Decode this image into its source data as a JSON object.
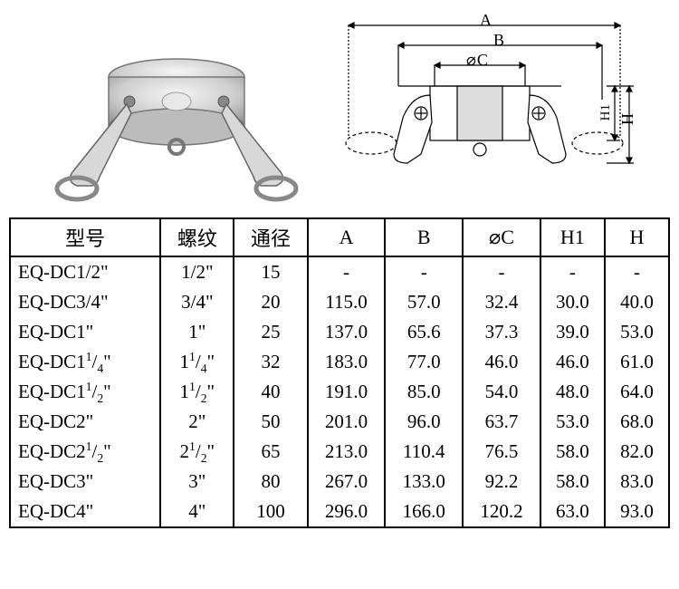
{
  "diagram": {
    "labels": {
      "A": "A",
      "B": "B",
      "C": "C",
      "H1": "H1",
      "H": "H"
    },
    "line_color": "#000000",
    "line_width": 1.2,
    "dashed_pattern": "4,3"
  },
  "table": {
    "border_color": "#000000",
    "border_width": 2,
    "header_fontsize": 22,
    "cell_fontsize": 21,
    "columns": [
      "型号",
      "螺纹",
      "通径",
      "A",
      "B",
      "⌀C",
      "H1",
      "H"
    ],
    "column_align": [
      "left",
      "center",
      "center",
      "center",
      "center",
      "center",
      "center",
      "center"
    ],
    "rows": [
      {
        "model": "EQ-DC1/2\"",
        "thread": "1/2\"",
        "bore": "15",
        "A": "-",
        "B": "-",
        "C": "-",
        "H1": "-",
        "H": "-"
      },
      {
        "model": "EQ-DC3/4\"",
        "thread": "3/4\"",
        "bore": "20",
        "A": "115.0",
        "B": "57.0",
        "C": "32.4",
        "H1": "30.0",
        "H": "40.0"
      },
      {
        "model": "EQ-DC1\"",
        "thread": "1\"",
        "bore": "25",
        "A": "137.0",
        "B": "65.6",
        "C": "37.3",
        "H1": "39.0",
        "H": "53.0"
      },
      {
        "model": "EQ-DC1¼\"",
        "thread": "1¼\"",
        "bore": "32",
        "A": "183.0",
        "B": "77.0",
        "C": "46.0",
        "H1": "46.0",
        "H": "61.0",
        "model_frac": [
          "1",
          "4"
        ],
        "thread_frac": [
          "1",
          "4"
        ]
      },
      {
        "model": "EQ-DC1½\"",
        "thread": "1½\"",
        "bore": "40",
        "A": "191.0",
        "B": "85.0",
        "C": "54.0",
        "H1": "48.0",
        "H": "64.0",
        "model_frac": [
          "1",
          "2"
        ],
        "thread_frac": [
          "1",
          "2"
        ]
      },
      {
        "model": "EQ-DC2\"",
        "thread": "2\"",
        "bore": "50",
        "A": "201.0",
        "B": "96.0",
        "C": "63.7",
        "H1": "53.0",
        "H": "68.0"
      },
      {
        "model": "EQ-DC2½\"",
        "thread": "2½\"",
        "bore": "65",
        "A": "213.0",
        "B": "110.4",
        "C": "76.5",
        "H1": "58.0",
        "H": "82.0",
        "model_frac": [
          "1",
          "2"
        ],
        "thread_frac": [
          "1",
          "2"
        ]
      },
      {
        "model": "EQ-DC3\"",
        "thread": "3\"",
        "bore": "80",
        "A": "267.0",
        "B": "133.0",
        "C": "92.2",
        "H1": "58.0",
        "H": "83.0"
      },
      {
        "model": "EQ-DC4\"",
        "thread": "4\"",
        "bore": "100",
        "A": "296.0",
        "B": "166.0",
        "C": "120.2",
        "H1": "63.0",
        "H": "93.0"
      }
    ]
  }
}
